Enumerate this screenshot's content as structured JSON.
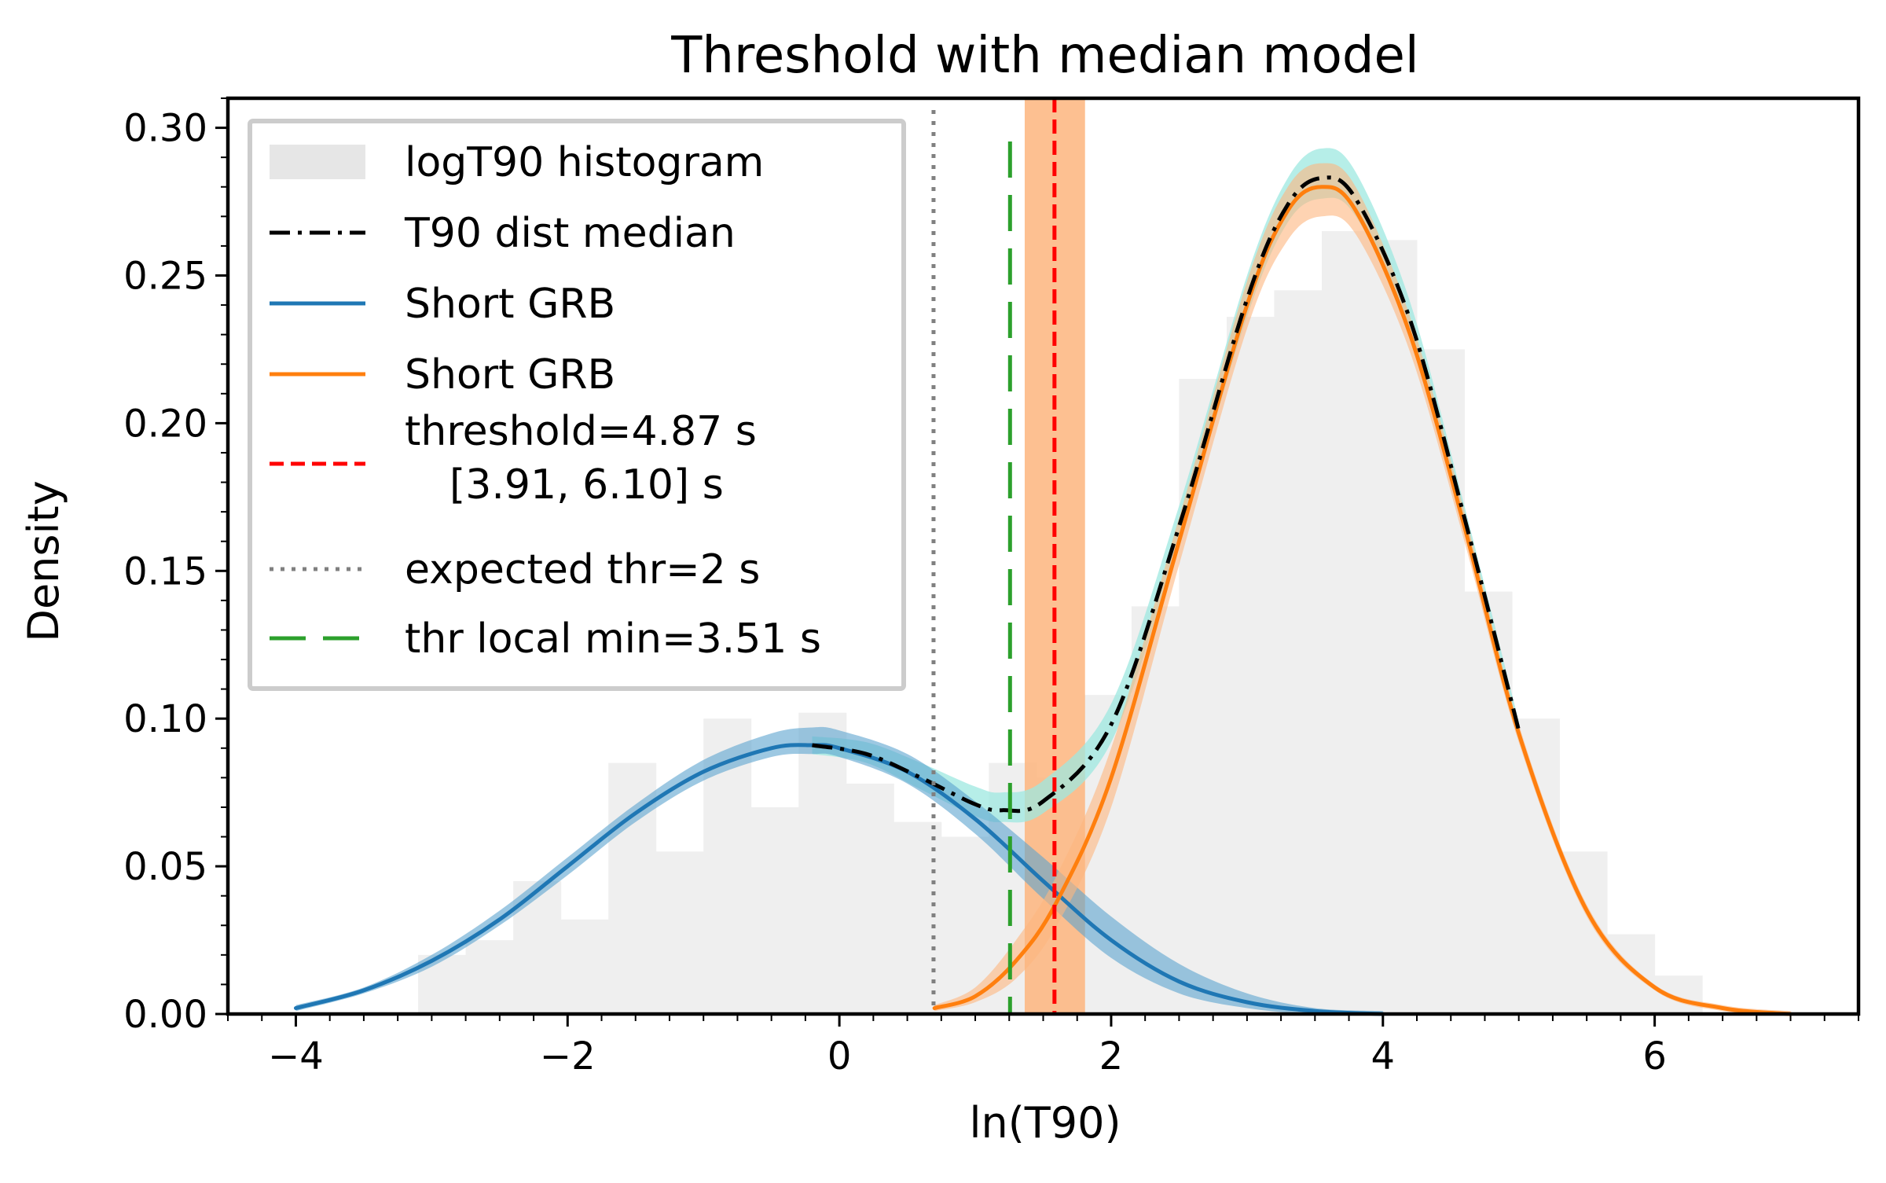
{
  "chart_data": {
    "type": "line",
    "title": "Threshold with median model",
    "xlabel": "ln(T90)",
    "ylabel": "Density",
    "xlim": [
      -4.5,
      7.5
    ],
    "ylim": [
      0,
      0.31
    ],
    "xticks": [
      "−4",
      "−2",
      "0",
      "2",
      "4",
      "6"
    ],
    "xtick_values": [
      -4,
      -2,
      0,
      2,
      4,
      6
    ],
    "yticks": [
      "0.00",
      "0.05",
      "0.10",
      "0.15",
      "0.20",
      "0.25",
      "0.30"
    ],
    "ytick_values": [
      0,
      0.05,
      0.1,
      0.15,
      0.2,
      0.25,
      0.3
    ],
    "grid": false,
    "legend_position": "upper-left",
    "legend": [
      {
        "label": "logT90 histogram",
        "style": "patch",
        "color": "#e6e6e6"
      },
      {
        "label": "T90 dist median",
        "style": "dashdot",
        "color": "#000000"
      },
      {
        "label": "Short GRB",
        "style": "solid",
        "color": "#1f77b4"
      },
      {
        "label": "Short GRB",
        "style": "solid",
        "color": "#ff7f0e"
      },
      {
        "label": "threshold=4.87 s",
        "label2": "[3.91, 6.10] s",
        "style": "dashed",
        "color": "#ff0000"
      },
      {
        "label": "expected thr=2 s",
        "style": "dotted",
        "color": "#808080"
      },
      {
        "label": "thr local min=3.51 s",
        "style": "longdash",
        "color": "#2ca02c"
      }
    ],
    "histogram": {
      "bin_edges": [
        -3.1,
        -2.75,
        -2.4,
        -2.05,
        -1.7,
        -1.35,
        -1.0,
        -0.65,
        -0.3,
        0.05,
        0.4,
        0.75,
        1.1,
        1.45,
        1.8,
        2.15,
        2.5,
        2.85,
        3.2,
        3.55,
        3.9,
        4.25,
        4.6,
        4.95,
        5.3,
        5.65,
        6.0,
        6.35
      ],
      "density": [
        0.02,
        0.025,
        0.045,
        0.032,
        0.085,
        0.055,
        0.1,
        0.07,
        0.102,
        0.078,
        0.065,
        0.06,
        0.085,
        0.08,
        0.108,
        0.138,
        0.215,
        0.236,
        0.245,
        0.265,
        0.262,
        0.225,
        0.143,
        0.1,
        0.055,
        0.027,
        0.013
      ]
    },
    "series": [
      {
        "name": "Short GRB",
        "color": "#1f77b4",
        "band_color": "#5ba3cf",
        "x": [
          -4.0,
          -3.5,
          -3.0,
          -2.5,
          -2.0,
          -1.5,
          -1.0,
          -0.5,
          -0.2,
          0.0,
          0.5,
          1.0,
          1.5,
          2.0,
          2.5,
          3.0,
          3.5,
          4.0
        ],
        "y": [
          0.002,
          0.008,
          0.018,
          0.032,
          0.05,
          0.068,
          0.082,
          0.09,
          0.091,
          0.09,
          0.082,
          0.066,
          0.045,
          0.025,
          0.011,
          0.004,
          0.001,
          0.0
        ],
        "band_low": [
          0.001,
          0.007,
          0.016,
          0.03,
          0.047,
          0.065,
          0.079,
          0.087,
          0.088,
          0.087,
          0.078,
          0.061,
          0.039,
          0.019,
          0.007,
          0.002,
          0.0,
          0.0
        ],
        "band_high": [
          0.003,
          0.009,
          0.02,
          0.035,
          0.053,
          0.071,
          0.086,
          0.095,
          0.097,
          0.096,
          0.088,
          0.072,
          0.053,
          0.033,
          0.017,
          0.007,
          0.002,
          0.001
        ]
      },
      {
        "name": "Short GRB",
        "color": "#ff7f0e",
        "band_color": "#fdb57e",
        "x": [
          0.7,
          1.0,
          1.3,
          1.6,
          2.0,
          2.5,
          3.0,
          3.3,
          3.55,
          3.8,
          4.2,
          4.6,
          5.0,
          5.5,
          6.0,
          6.5,
          7.0
        ],
        "y": [
          0.002,
          0.006,
          0.018,
          0.038,
          0.08,
          0.16,
          0.24,
          0.272,
          0.28,
          0.272,
          0.23,
          0.165,
          0.095,
          0.035,
          0.009,
          0.002,
          0.0
        ],
        "band_low": [
          0.001,
          0.004,
          0.012,
          0.03,
          0.07,
          0.152,
          0.232,
          0.262,
          0.27,
          0.264,
          0.224,
          0.16,
          0.092,
          0.033,
          0.008,
          0.001,
          0.0
        ],
        "band_high": [
          0.003,
          0.009,
          0.025,
          0.047,
          0.09,
          0.168,
          0.248,
          0.28,
          0.288,
          0.28,
          0.236,
          0.17,
          0.098,
          0.037,
          0.01,
          0.003,
          0.001
        ]
      },
      {
        "name": "T90 dist median",
        "color": "#000000",
        "band_color": "#9ee8e0",
        "x": [
          -0.2,
          0.2,
          0.6,
          1.0,
          1.2,
          1.5,
          2.0,
          2.5,
          3.0,
          3.3,
          3.55,
          3.8,
          4.2,
          4.6,
          5.0
        ],
        "y": [
          0.091,
          0.088,
          0.08,
          0.071,
          0.069,
          0.072,
          0.098,
          0.165,
          0.242,
          0.274,
          0.283,
          0.276,
          0.235,
          0.168,
          0.096
        ],
        "band_low": [
          0.088,
          0.085,
          0.076,
          0.067,
          0.065,
          0.068,
          0.092,
          0.16,
          0.236,
          0.268,
          0.276,
          0.27,
          0.23,
          0.164,
          0.094
        ],
        "band_high": [
          0.094,
          0.092,
          0.085,
          0.077,
          0.075,
          0.079,
          0.105,
          0.172,
          0.25,
          0.283,
          0.293,
          0.285,
          0.241,
          0.172,
          0.099
        ]
      }
    ],
    "vertical_lines": [
      {
        "name": "threshold",
        "x": 1.583,
        "color": "#ff0000",
        "style": "dashed",
        "band": [
          1.364,
          1.808
        ],
        "band_color": "#fdb57e"
      },
      {
        "name": "expected thr",
        "x": 0.693,
        "color": "#808080",
        "style": "dotted"
      },
      {
        "name": "thr local min",
        "x": 1.256,
        "color": "#2ca02c",
        "style": "longdash"
      }
    ]
  }
}
